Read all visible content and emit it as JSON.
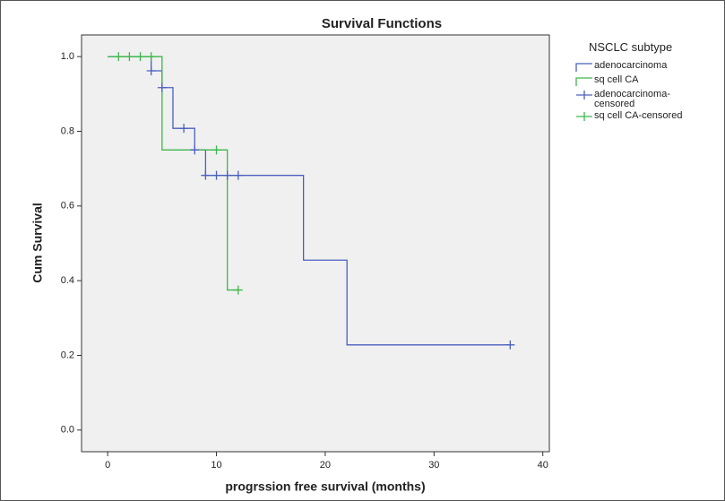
{
  "chart_data": {
    "type": "line",
    "title": "Survival Functions",
    "x_label": "progrssion free survival (months)",
    "y_label": "Cum Survival",
    "legend_title": "NSCLC subtype",
    "legend": "right",
    "xlim": [
      -2.4,
      40.6
    ],
    "ylim": [
      -0.058,
      1.058
    ],
    "xticks": [
      0,
      10,
      20,
      30,
      40
    ],
    "yticks": [
      {
        "value": 0,
        "label": "0.0"
      },
      0.2,
      0.4,
      0.6,
      0.8,
      {
        "value": 1,
        "label": "1.0"
      }
    ],
    "series": [
      {
        "name": "adenocarcinoma",
        "color": "#4a5fbf",
        "drawstyle": "steps-post",
        "x": [
          0,
          4,
          5,
          6,
          8,
          9,
          18,
          22,
          37
        ],
        "values": [
          1.0,
          0.962,
          0.917,
          0.808,
          0.75,
          0.682,
          0.455,
          0.228,
          0.228
        ]
      },
      {
        "name": "sq cell CA",
        "color": "#3cb84a",
        "drawstyle": "steps-post",
        "x": [
          0,
          5,
          11,
          12
        ],
        "values": [
          1.0,
          0.75,
          0.375,
          0.375
        ]
      },
      {
        "name": "adenocarcinoma-censored",
        "color": "#4a5fbf",
        "marker": "+",
        "x": [
          4,
          5,
          7,
          8,
          9,
          10,
          11,
          12,
          37
        ],
        "values": [
          0.962,
          0.917,
          0.808,
          0.75,
          0.682,
          0.682,
          0.682,
          0.682,
          0.228
        ]
      },
      {
        "name": "sq cell CA-censored",
        "color": "#3cb84a",
        "marker": "+",
        "x": [
          1,
          2,
          3,
          4,
          10,
          12
        ],
        "values": [
          1.0,
          1.0,
          1.0,
          1.0,
          0.75,
          0.375
        ]
      }
    ]
  }
}
